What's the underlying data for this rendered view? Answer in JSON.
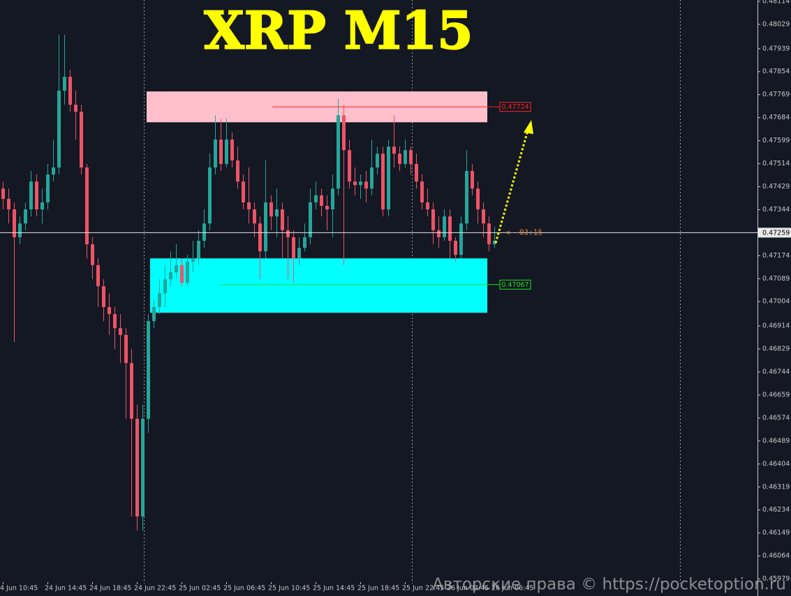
{
  "chart_data": {
    "type": "candlestick",
    "title": "XRP M15",
    "watermark": "Авторские права © https://pocketoption.ru",
    "up_color": "#26a69a",
    "down_color": "#ef5366",
    "categories": [
      "4 Jun 10:45",
      null,
      null,
      null,
      null,
      null,
      null,
      null,
      "24 Jun 14:45",
      null,
      null,
      null,
      null,
      null,
      null,
      null,
      "24 Jun 18:45",
      null,
      null,
      null,
      null,
      null,
      null,
      null,
      "24 Jun 22:45",
      null,
      null,
      null,
      null,
      null,
      null,
      null,
      "25 Jun 02:45",
      null,
      null,
      null,
      null,
      null,
      null,
      null,
      "25 Jun 06:45",
      null,
      null,
      null,
      null,
      null,
      null,
      null,
      "25 Jun 10:45",
      null,
      null,
      null,
      null,
      null,
      null,
      null,
      "25 Jun 14:45",
      null,
      null,
      null,
      null,
      null,
      null,
      null,
      "25 Jun 18:45",
      null,
      null,
      null,
      null,
      null,
      null,
      null,
      "25 Jun 22:45",
      null,
      null,
      null,
      null,
      null,
      null,
      null,
      "26 Jun 02:45",
      null,
      null,
      null,
      null,
      null,
      null,
      null,
      "26 Jun 06:45"
    ],
    "ohlc": [
      [
        0.47422,
        0.47448,
        0.47345,
        0.47384
      ],
      [
        0.47384,
        0.47422,
        0.47293,
        0.47345
      ],
      [
        0.47345,
        0.47371,
        0.46855,
        0.47242
      ],
      [
        0.47242,
        0.47319,
        0.47216,
        0.47293
      ],
      [
        0.47293,
        0.47371,
        0.47268,
        0.47345
      ],
      [
        0.47345,
        0.47487,
        0.47319,
        0.47448
      ],
      [
        0.47448,
        0.47474,
        0.47319,
        0.47345
      ],
      [
        0.47345,
        0.47422,
        0.47293,
        0.47371
      ],
      [
        0.47371,
        0.47513,
        0.47345,
        0.47474
      ],
      [
        0.47474,
        0.47603,
        0.47448,
        0.475
      ],
      [
        0.475,
        0.4799,
        0.47474,
        0.47784
      ],
      [
        0.47784,
        0.4799,
        0.47732,
        0.47835
      ],
      [
        0.47835,
        0.47861,
        0.47706,
        0.47732
      ],
      [
        0.47732,
        0.47784,
        0.47603,
        0.47706
      ],
      [
        0.47706,
        0.47732,
        0.47474,
        0.475
      ],
      [
        0.475,
        0.47513,
        0.47164,
        0.47216
      ],
      [
        0.47216,
        0.47242,
        0.47087,
        0.47139
      ],
      [
        0.47139,
        0.47164,
        0.46984,
        0.47061
      ],
      [
        0.47061,
        0.47087,
        0.46932,
        0.46984
      ],
      [
        0.46984,
        0.47035,
        0.46881,
        0.46958
      ],
      [
        0.46958,
        0.46984,
        0.46829,
        0.46906
      ],
      [
        0.46906,
        0.46958,
        0.46777,
        0.46881
      ],
      [
        0.46881,
        0.46906,
        0.46571,
        0.46777
      ],
      [
        0.46777,
        0.46829,
        0.4621,
        0.46571
      ],
      [
        0.46571,
        0.46623,
        0.46158,
        0.4621
      ],
      [
        0.4621,
        0.46623,
        0.46158,
        0.46571
      ],
      [
        0.46571,
        0.46958,
        0.46519,
        0.46932
      ],
      [
        0.46932,
        0.4701,
        0.46906,
        0.46984
      ],
      [
        0.46984,
        0.47087,
        0.46958,
        0.47035
      ],
      [
        0.47035,
        0.47139,
        0.46984,
        0.47087
      ],
      [
        0.47087,
        0.4719,
        0.47061,
        0.47113
      ],
      [
        0.47113,
        0.47216,
        0.47087,
        0.47139
      ],
      [
        0.47139,
        0.47164,
        0.47061,
        0.47074
      ],
      [
        0.47074,
        0.47177,
        0.47061,
        0.47152
      ],
      [
        0.47152,
        0.47229,
        0.47113,
        0.47164
      ],
      [
        0.47164,
        0.47268,
        0.47139,
        0.47229
      ],
      [
        0.47229,
        0.47345,
        0.47203,
        0.47293
      ],
      [
        0.47293,
        0.47551,
        0.47268,
        0.475
      ],
      [
        0.475,
        0.47693,
        0.47474,
        0.47603
      ],
      [
        0.47603,
        0.4768,
        0.47487,
        0.47513
      ],
      [
        0.47513,
        0.4768,
        0.475,
        0.47603
      ],
      [
        0.47603,
        0.47629,
        0.475,
        0.47526
      ],
      [
        0.47526,
        0.47577,
        0.47422,
        0.47448
      ],
      [
        0.47448,
        0.47474,
        0.47345,
        0.47371
      ],
      [
        0.47371,
        0.475,
        0.47293,
        0.47345
      ],
      [
        0.47345,
        0.47371,
        0.47242,
        0.47293
      ],
      [
        0.47293,
        0.47319,
        0.47087,
        0.4719
      ],
      [
        0.4719,
        0.47526,
        0.47164,
        0.47371
      ],
      [
        0.47371,
        0.47397,
        0.47268,
        0.47319
      ],
      [
        0.47319,
        0.47422,
        0.47242,
        0.47345
      ],
      [
        0.47345,
        0.47371,
        0.47164,
        0.47268
      ],
      [
        0.47268,
        0.47319,
        0.47087,
        0.47242
      ],
      [
        0.47242,
        0.47268,
        0.47074,
        0.47164
      ],
      [
        0.47164,
        0.47242,
        0.47139,
        0.47203
      ],
      [
        0.47203,
        0.47293,
        0.4719,
        0.47242
      ],
      [
        0.47242,
        0.47422,
        0.47216,
        0.47371
      ],
      [
        0.47371,
        0.47448,
        0.47345,
        0.47397
      ],
      [
        0.47397,
        0.47422,
        0.47319,
        0.47358
      ],
      [
        0.47358,
        0.47397,
        0.47268,
        0.47345
      ],
      [
        0.47345,
        0.47474,
        0.47242,
        0.47422
      ],
      [
        0.47422,
        0.47753,
        0.47397,
        0.47693
      ],
      [
        0.47693,
        0.47732,
        0.47139,
        0.47564
      ],
      [
        0.47564,
        0.47603,
        0.47422,
        0.47448
      ],
      [
        0.47448,
        0.475,
        0.47397,
        0.47435
      ],
      [
        0.47435,
        0.47474,
        0.47384,
        0.47448
      ],
      [
        0.47448,
        0.47487,
        0.47371,
        0.47422
      ],
      [
        0.47422,
        0.47603,
        0.47397,
        0.475
      ],
      [
        0.475,
        0.47577,
        0.47474,
        0.47551
      ],
      [
        0.47551,
        0.47577,
        0.47319,
        0.47345
      ],
      [
        0.47345,
        0.47603,
        0.47319,
        0.47577
      ],
      [
        0.47577,
        0.47693,
        0.475,
        0.47551
      ],
      [
        0.47551,
        0.47577,
        0.47487,
        0.47513
      ],
      [
        0.47513,
        0.47603,
        0.475,
        0.47564
      ],
      [
        0.47564,
        0.47577,
        0.47474,
        0.47513
      ],
      [
        0.47513,
        0.47551,
        0.47422,
        0.47448
      ],
      [
        0.47448,
        0.47474,
        0.47345,
        0.47371
      ],
      [
        0.47371,
        0.47422,
        0.47319,
        0.47345
      ],
      [
        0.47345,
        0.47371,
        0.47216,
        0.47268
      ],
      [
        0.47268,
        0.47319,
        0.47203,
        0.47242
      ],
      [
        0.47242,
        0.47345,
        0.47229,
        0.47319
      ],
      [
        0.47319,
        0.47345,
        0.47164,
        0.47229
      ],
      [
        0.47229,
        0.47242,
        0.47152,
        0.47177
      ],
      [
        0.47177,
        0.47319,
        0.47164,
        0.47293
      ],
      [
        0.47293,
        0.47564,
        0.47268,
        0.47487
      ],
      [
        0.47487,
        0.47513,
        0.47397,
        0.47422
      ],
      [
        0.47422,
        0.47448,
        0.47293,
        0.47345
      ],
      [
        0.47345,
        0.47371,
        0.47242,
        0.47293
      ],
      [
        0.47293,
        0.47319,
        0.4719,
        0.47216
      ],
      [
        0.47216,
        0.47281,
        0.47203,
        0.47229
      ]
    ],
    "ylim": [
      0.45916,
      0.48119
    ],
    "yticks": [
      0.48114,
      0.48029,
      0.47939,
      0.47854,
      0.47769,
      0.47684,
      0.47599,
      0.47514,
      0.47429,
      0.47344,
      0.47174,
      0.47089,
      0.47004,
      0.46914,
      0.46829,
      0.46744,
      0.46659,
      0.46574,
      0.46489,
      0.46404,
      0.46319,
      0.46234,
      0.46149,
      0.46064,
      0.45979
    ],
    "current_price": {
      "value": 0.47259,
      "countdown": "<--03:15"
    },
    "levels": [
      {
        "value": 0.47724,
        "color": "#ff2020"
      },
      {
        "value": 0.47067,
        "color": "#20e020"
      }
    ],
    "zones": [
      {
        "upper": 0.47781,
        "lower": 0.47667,
        "color": "#ffc0cb"
      },
      {
        "upper": 0.47164,
        "lower": 0.46963,
        "color": "#00ffff"
      }
    ]
  }
}
